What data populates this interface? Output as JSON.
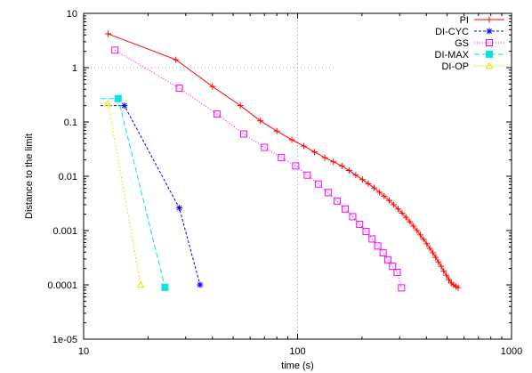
{
  "chart_data": {
    "type": "line",
    "title": "",
    "xlabel": "time (s)",
    "ylabel": "Distance to the limit",
    "xscale": "log",
    "yscale": "log",
    "xlim": [
      10,
      1000
    ],
    "ylim": [
      1e-05,
      10
    ],
    "x_ticks": [
      {
        "value": 10,
        "label": "10"
      },
      {
        "value": 100,
        "label": "100"
      },
      {
        "value": 1000,
        "label": "1000"
      }
    ],
    "y_ticks": [
      {
        "value": 10,
        "label": "10"
      },
      {
        "value": 1,
        "label": "1"
      },
      {
        "value": 0.1,
        "label": "0.1"
      },
      {
        "value": 0.01,
        "label": "0.01"
      },
      {
        "value": 0.001,
        "label": "0.001"
      },
      {
        "value": 0.0001,
        "label": "0.0001"
      },
      {
        "value": 1e-05,
        "label": "1e-05"
      }
    ],
    "grid": "dotted lines at x=100 and y=1 only",
    "legend_position": "top-right",
    "series": [
      {
        "name": "PI",
        "color": "#ff0000",
        "marker": "plus",
        "dash": "solid",
        "points": [
          [
            13,
            4.2
          ],
          [
            27,
            1.4
          ],
          [
            40,
            0.45
          ],
          [
            54,
            0.2
          ],
          [
            67,
            0.105
          ],
          [
            80,
            0.068
          ],
          [
            94,
            0.047
          ],
          [
            107,
            0.036
          ],
          [
            120,
            0.028
          ],
          [
            134,
            0.022
          ],
          [
            147,
            0.0185
          ],
          [
            161,
            0.0155
          ],
          [
            174,
            0.0128
          ],
          [
            187,
            0.0105
          ],
          [
            201,
            0.0087
          ],
          [
            214,
            0.0073
          ],
          [
            228,
            0.0061
          ],
          [
            241,
            0.0051
          ],
          [
            254,
            0.0043
          ],
          [
            268,
            0.0036
          ],
          [
            281,
            0.003
          ],
          [
            295,
            0.0025
          ],
          [
            308,
            0.0021
          ],
          [
            321,
            0.00175
          ],
          [
            335,
            0.00145
          ],
          [
            348,
            0.00121
          ],
          [
            362,
            0.001
          ],
          [
            375,
            0.00083
          ],
          [
            388,
            0.00069
          ],
          [
            402,
            0.00057
          ],
          [
            415,
            0.00047
          ],
          [
            429,
            0.00039
          ],
          [
            442,
            0.00032
          ],
          [
            455,
            0.000265
          ],
          [
            469,
            0.00022
          ],
          [
            482,
            0.00018
          ],
          [
            496,
            0.00015
          ],
          [
            509,
            0.000125
          ],
          [
            523,
            0.000108
          ],
          [
            536,
            0.0001
          ],
          [
            550,
            9.3e-05
          ],
          [
            563,
            8.9e-05
          ]
        ]
      },
      {
        "name": "DI-CYC",
        "color": "#0000ff",
        "marker": "star",
        "dash": "3,2",
        "points": [
          [
            12,
            0.2
          ],
          [
            15.5,
            0.2
          ],
          [
            28,
            0.0026
          ],
          [
            35,
            0.0001
          ]
        ]
      },
      {
        "name": "GS",
        "color": "#ff00ff",
        "marker": "square-open",
        "dash": "1,2",
        "points": [
          [
            14,
            2.1
          ],
          [
            28,
            0.42
          ],
          [
            42,
            0.14
          ],
          [
            56,
            0.06
          ],
          [
            70,
            0.034
          ],
          [
            84,
            0.022
          ],
          [
            98,
            0.0155
          ],
          [
            111,
            0.0105
          ],
          [
            125,
            0.0072
          ],
          [
            139,
            0.005
          ],
          [
            153,
            0.0035
          ],
          [
            167,
            0.0025
          ],
          [
            181,
            0.0018
          ],
          [
            195,
            0.0013
          ],
          [
            209,
            0.00096
          ],
          [
            223,
            0.0007
          ],
          [
            237,
            0.00052
          ],
          [
            251,
            0.00039
          ],
          [
            264,
            0.00029
          ],
          [
            278,
            0.00022
          ],
          [
            292,
            0.00017
          ],
          [
            306,
            8.8e-05
          ]
        ]
      },
      {
        "name": "DI-MAX",
        "color": "#00e5e5",
        "marker": "square-filled",
        "dash": "6,3",
        "points": [
          [
            12,
            0.27
          ],
          [
            14.5,
            0.27
          ],
          [
            24,
            9e-05
          ]
        ]
      },
      {
        "name": "DI-OP",
        "color": "#e5e500",
        "marker": "triangle",
        "dash": "2,2",
        "points": [
          [
            12,
            0.22
          ],
          [
            13,
            0.22
          ],
          [
            18.5,
            0.0001
          ]
        ]
      }
    ]
  }
}
